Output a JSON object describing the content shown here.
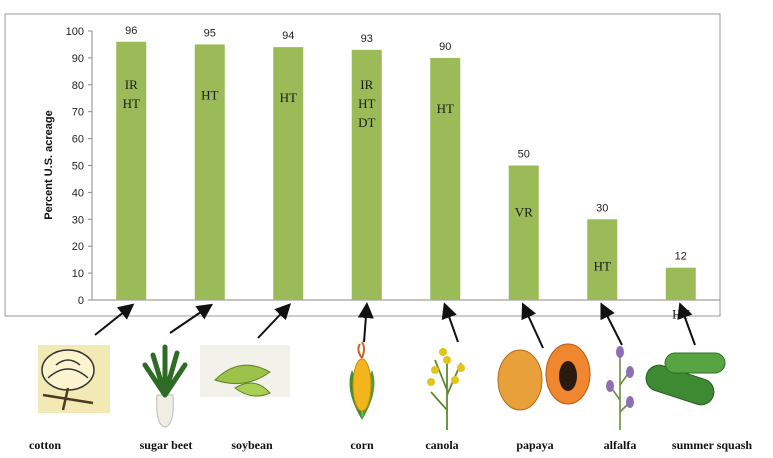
{
  "chart_data": {
    "type": "bar",
    "title": "",
    "ylabel": "Percent U.S. acreage",
    "xlabel": "",
    "ylim": [
      0,
      100
    ],
    "yticks": [
      0,
      10,
      20,
      30,
      40,
      50,
      60,
      70,
      80,
      90,
      100
    ],
    "grid": false,
    "bar_color": "#9bbb59",
    "categories": [
      "cotton",
      "sugar beet",
      "soybean",
      "corn",
      "canola",
      "papaya",
      "alfalfa",
      "summer squash"
    ],
    "values": [
      96,
      95,
      94,
      93,
      90,
      50,
      30,
      12
    ],
    "traits": [
      [
        "IR",
        "HT"
      ],
      [
        "HT"
      ],
      [
        "HT"
      ],
      [
        "IR",
        "HT",
        "DT"
      ],
      [
        "HT"
      ],
      [
        "VR"
      ],
      [
        "HT"
      ],
      [
        "HT"
      ]
    ],
    "icons": [
      "cotton-boll-icon",
      "sugar-beet-icon",
      "soybean-pod-icon",
      "corn-cob-icon",
      "canola-flower-icon",
      "papaya-fruit-icon",
      "alfalfa-plant-icon",
      "summer-squash-icon"
    ]
  }
}
